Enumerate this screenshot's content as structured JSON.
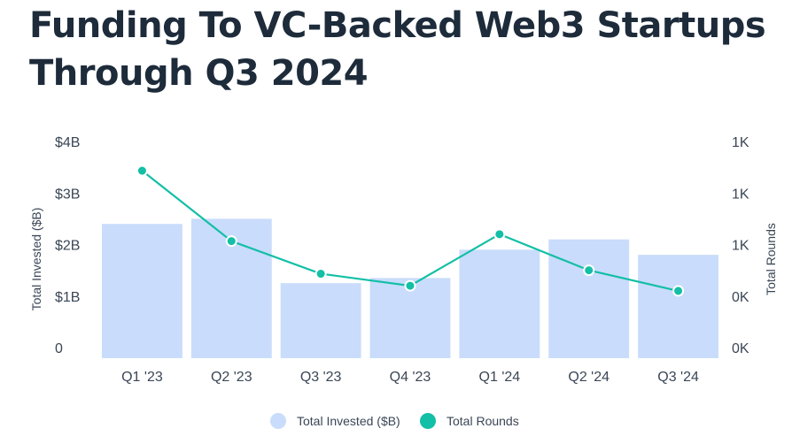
{
  "title": "Funding To VC-Backed Web3 Startups Through Q3 2024",
  "colors": {
    "bar": "#c9dcfb",
    "line": "#13bfa6",
    "title": "#1d2b3a",
    "text": "#3a4656"
  },
  "chart_data": {
    "type": "bar",
    "title": "Funding To VC-Backed Web3 Startups Through Q3 2024",
    "categories": [
      "Q1 '23",
      "Q2 '23",
      "Q3 '23",
      "Q4 '23",
      "Q1 '24",
      "Q2 '24",
      "Q3 '24"
    ],
    "series": [
      {
        "name": "Total Invested ($B)",
        "type": "bar",
        "axis": "left",
        "values": [
          2.4,
          2.5,
          1.25,
          1.35,
          1.9,
          2.1,
          1.8
        ]
      },
      {
        "name": "Total Rounds",
        "type": "line",
        "axis": "right",
        "values": [
          1030,
          620,
          430,
          360,
          660,
          450,
          330
        ]
      }
    ],
    "ylabel": "Total Invested ($B)",
    "ylim": [
      0,
      4
    ],
    "y_ticks": [
      "0",
      "$1B",
      "$2B",
      "$3B",
      "$4B"
    ],
    "y2label": "Total Rounds",
    "y2lim": [
      0,
      1200
    ],
    "y2_ticks": [
      "0K",
      "0K",
      "1K",
      "1K",
      "1K"
    ],
    "legend": {
      "position": "bottom",
      "items": [
        "Total Invested ($B)",
        "Total Rounds"
      ]
    },
    "grid": false
  }
}
